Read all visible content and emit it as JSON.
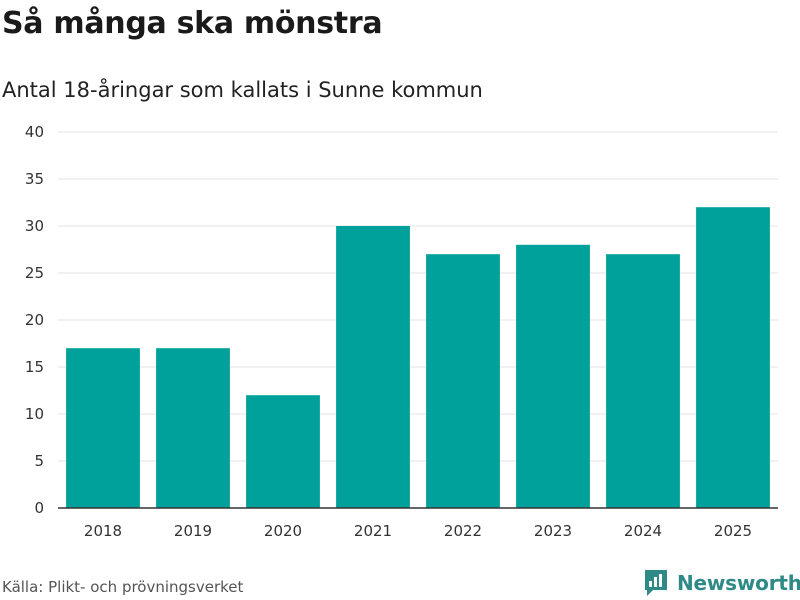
{
  "header": {
    "title": "Så många ska mönstra",
    "subtitle": "Antal 18-åringar som kallats i Sunne kommun"
  },
  "footer": {
    "source": "Källa: Plikt- och prövningsverket",
    "brand": "Newsworthy"
  },
  "colors": {
    "bar": "#00a19a",
    "grid": "#e3e3e3",
    "axis": "#333333",
    "brand": "#2d8a86"
  },
  "chart_data": {
    "type": "bar",
    "title": "Så många ska mönstra",
    "subtitle": "Antal 18-åringar som kallats i Sunne kommun",
    "xlabel": "",
    "ylabel": "",
    "categories": [
      "2018",
      "2019",
      "2020",
      "2021",
      "2022",
      "2023",
      "2024",
      "2025"
    ],
    "values": [
      17,
      17,
      12,
      30,
      27,
      28,
      27,
      32
    ],
    "ylim": [
      0,
      40
    ],
    "yticks": [
      0,
      5,
      10,
      15,
      20,
      25,
      30,
      35,
      40
    ],
    "grid": true,
    "legend": "none"
  }
}
